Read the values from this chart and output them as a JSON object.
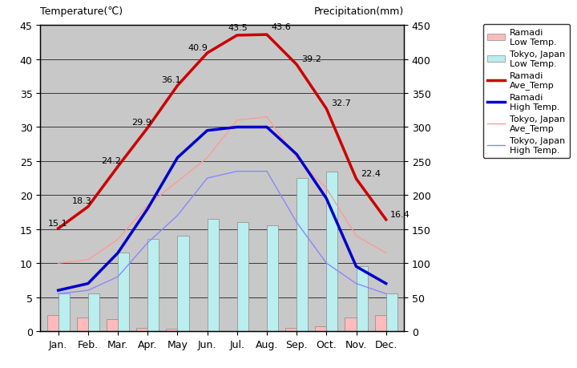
{
  "months": [
    "Jan.",
    "Feb.",
    "Mar.",
    "Apr.",
    "May",
    "Jun.",
    "Jul.",
    "Aug.",
    "Sep.",
    "Oct.",
    "Nov.",
    "Dec."
  ],
  "ramadi_low_temp": [
    2.3,
    2.0,
    1.8,
    0.5,
    0.3,
    0.0,
    0.0,
    0.0,
    0.5,
    0.7,
    2.0,
    2.3
  ],
  "tokyo_low_temp": [
    5.5,
    5.5,
    11.5,
    13.5,
    14.0,
    16.5,
    16.0,
    15.5,
    22.5,
    23.5,
    9.5,
    5.5
  ],
  "ramadi_ave_temp": [
    15.1,
    18.3,
    24.2,
    29.9,
    36.1,
    40.9,
    43.5,
    43.6,
    39.2,
    32.7,
    22.4,
    16.4
  ],
  "ramadi_high_temp": [
    6.0,
    7.0,
    11.5,
    18.0,
    25.5,
    29.5,
    30.0,
    30.0,
    26.0,
    19.5,
    9.5,
    7.0
  ],
  "tokyo_ave_temp": [
    10.0,
    10.5,
    13.5,
    18.5,
    22.0,
    25.5,
    31.0,
    31.5,
    25.5,
    21.0,
    14.0,
    11.5
  ],
  "tokyo_high_temp": [
    5.5,
    6.0,
    8.0,
    13.0,
    17.0,
    22.5,
    23.5,
    23.5,
    16.0,
    10.0,
    7.0,
    5.5
  ],
  "ramadi_ave_labels": [
    "15.1",
    "18.3",
    "24.2",
    "29.9",
    "36.1",
    "40.9",
    "43.5",
    "43.6",
    "39.2",
    "32.7",
    "22.4",
    "16.4"
  ],
  "label_dx": [
    -0.35,
    -0.55,
    -0.55,
    -0.55,
    -0.55,
    -0.65,
    -0.3,
    0.15,
    0.15,
    0.15,
    0.15,
    0.15
  ],
  "label_dy": [
    0.5,
    0.5,
    0.5,
    0.5,
    0.5,
    0.5,
    0.8,
    0.8,
    0.5,
    0.5,
    0.5,
    0.5
  ],
  "background_color": "#c8c8c8",
  "fig_facecolor": "#ffffff",
  "bar_color_ramadi": "#ffbbbb",
  "bar_color_tokyo": "#bbeeee",
  "line_color_ramadi_ave": "#cc0000",
  "line_color_ramadi_high": "#0000cc",
  "line_color_tokyo_ave": "#ff9999",
  "line_color_tokyo_high": "#8888ff",
  "title_left": "Temperature(℃)",
  "title_right": "Precipitation(mm)",
  "ylim_left": [
    0,
    45
  ],
  "ylim_right": [
    0,
    450
  ],
  "yticks_left": [
    0,
    5,
    10,
    15,
    20,
    25,
    30,
    35,
    40,
    45
  ],
  "yticks_right": [
    0,
    50,
    100,
    150,
    200,
    250,
    300,
    350,
    400,
    450
  ]
}
